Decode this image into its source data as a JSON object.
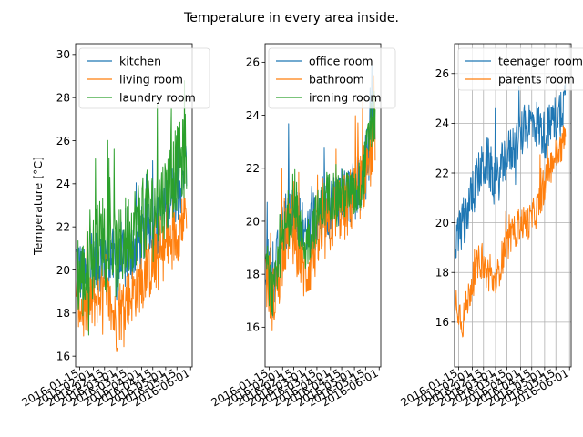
{
  "chart_data": {
    "type": "line",
    "title": "Temperature in every area inside.",
    "ylabel": "Temperature [°C]",
    "x_ticks": [
      "2016-01-15",
      "2016-02-01",
      "2016-02-15",
      "2016-03-01",
      "2016-03-15",
      "2016-04-01",
      "2016-04-15",
      "2016-05-01",
      "2016-05-15",
      "2016-06-01"
    ],
    "xlim": [
      "2016-01-10",
      "2016-06-03"
    ],
    "panels": [
      {
        "ylim": [
          15.5,
          30.5
        ],
        "y_ticks": [
          16,
          18,
          20,
          22,
          24,
          26,
          28,
          30
        ],
        "grid": false,
        "legend": "upper-left",
        "series": [
          {
            "name": "kitchen",
            "color": "#1f77b4",
            "x": [
              "2016-01-11",
              "2016-01-20",
              "2016-01-31",
              "2016-02-10",
              "2016-02-20",
              "2016-03-01",
              "2016-03-12",
              "2016-03-22",
              "2016-04-01",
              "2016-04-11",
              "2016-04-21",
              "2016-05-01",
              "2016-05-11",
              "2016-05-21",
              "2016-05-27"
            ],
            "y": [
              20.5,
              19.5,
              20.0,
              20.5,
              21.0,
              20.0,
              20.5,
              21.0,
              21.5,
              22.0,
              22.0,
              23.0,
              23.5,
              24.0,
              25.0
            ],
            "spread": 1.5
          },
          {
            "name": "living room",
            "color": "#ff7f0e",
            "x": [
              "2016-01-11",
              "2016-01-20",
              "2016-01-31",
              "2016-02-10",
              "2016-02-20",
              "2016-03-01",
              "2016-03-12",
              "2016-03-22",
              "2016-04-01",
              "2016-04-11",
              "2016-04-21",
              "2016-05-01",
              "2016-05-11",
              "2016-05-21",
              "2016-05-27"
            ],
            "y": [
              19.0,
              18.0,
              18.5,
              19.0,
              18.5,
              17.5,
              18.5,
              19.0,
              19.5,
              20.0,
              20.5,
              21.0,
              21.5,
              22.0,
              23.0
            ],
            "spread": 1.4
          },
          {
            "name": "laundry room",
            "color": "#2ca02c",
            "x": [
              "2016-01-11",
              "2016-01-20",
              "2016-01-31",
              "2016-02-10",
              "2016-02-20",
              "2016-03-01",
              "2016-03-12",
              "2016-03-22",
              "2016-04-01",
              "2016-04-11",
              "2016-04-21",
              "2016-05-01",
              "2016-05-11",
              "2016-05-21",
              "2016-05-27"
            ],
            "y": [
              20.0,
              19.5,
              20.5,
              21.5,
              22.0,
              20.5,
              21.5,
              22.0,
              22.5,
              22.5,
              23.0,
              23.5,
              24.5,
              25.0,
              25.5
            ],
            "spread": 2.0
          }
        ]
      },
      {
        "ylim": [
          14.5,
          26.7
        ],
        "y_ticks": [
          16,
          18,
          20,
          22,
          24,
          26
        ],
        "grid": false,
        "legend": "upper-left",
        "series": [
          {
            "name": "office room",
            "color": "#1f77b4",
            "x": [
              "2016-01-11",
              "2016-01-20",
              "2016-01-31",
              "2016-02-10",
              "2016-02-20",
              "2016-03-01",
              "2016-03-12",
              "2016-03-22",
              "2016-04-01",
              "2016-04-11",
              "2016-04-21",
              "2016-05-01",
              "2016-05-11",
              "2016-05-21",
              "2016-05-27"
            ],
            "y": [
              18.5,
              17.5,
              19.5,
              20.5,
              20.0,
              19.5,
              20.0,
              20.5,
              20.5,
              21.0,
              21.0,
              21.0,
              21.5,
              23.0,
              24.0
            ],
            "spread": 1.2
          },
          {
            "name": "bathroom",
            "color": "#ff7f0e",
            "x": [
              "2016-01-11",
              "2016-01-20",
              "2016-01-31",
              "2016-02-10",
              "2016-02-20",
              "2016-03-01",
              "2016-03-12",
              "2016-03-22",
              "2016-04-01",
              "2016-04-11",
              "2016-04-21",
              "2016-05-01",
              "2016-05-11",
              "2016-05-21",
              "2016-05-27"
            ],
            "y": [
              18.0,
              17.0,
              18.5,
              20.0,
              19.0,
              18.0,
              19.0,
              19.5,
              20.0,
              20.5,
              20.5,
              21.0,
              21.5,
              22.5,
              23.5
            ],
            "spread": 1.3
          },
          {
            "name": "ironing room",
            "color": "#2ca02c",
            "x": [
              "2016-01-11",
              "2016-01-20",
              "2016-01-31",
              "2016-02-10",
              "2016-02-20",
              "2016-03-01",
              "2016-03-12",
              "2016-03-22",
              "2016-04-01",
              "2016-04-11",
              "2016-04-21",
              "2016-05-01",
              "2016-05-11",
              "2016-05-21",
              "2016-05-27"
            ],
            "y": [
              18.5,
              17.0,
              19.0,
              20.5,
              20.0,
              19.0,
              20.0,
              20.5,
              21.0,
              21.0,
              21.0,
              21.0,
              21.5,
              23.5,
              24.0
            ],
            "spread": 1.0
          }
        ]
      },
      {
        "ylim": [
          14.2,
          27.2
        ],
        "y_ticks": [
          16,
          18,
          20,
          22,
          24,
          26
        ],
        "grid": true,
        "legend": "upper-left",
        "series": [
          {
            "name": "teenager room",
            "color": "#1f77b4",
            "x": [
              "2016-01-11",
              "2016-01-20",
              "2016-01-31",
              "2016-02-10",
              "2016-02-20",
              "2016-03-01",
              "2016-03-12",
              "2016-03-22",
              "2016-04-01",
              "2016-04-11",
              "2016-04-21",
              "2016-05-01",
              "2016-05-11",
              "2016-05-21",
              "2016-05-27"
            ],
            "y": [
              19.0,
              20.0,
              21.0,
              22.0,
              22.5,
              21.5,
              22.5,
              23.0,
              23.5,
              24.0,
              24.0,
              23.5,
              24.0,
              24.5,
              25.0
            ],
            "spread": 1.0
          },
          {
            "name": "parents room",
            "color": "#ff7f0e",
            "x": [
              "2016-01-11",
              "2016-01-20",
              "2016-01-31",
              "2016-02-10",
              "2016-02-20",
              "2016-03-01",
              "2016-03-12",
              "2016-03-22",
              "2016-04-01",
              "2016-04-11",
              "2016-04-21",
              "2016-05-01",
              "2016-05-11",
              "2016-05-21",
              "2016-05-27"
            ],
            "y": [
              17.0,
              16.0,
              17.5,
              18.5,
              18.0,
              17.5,
              19.0,
              19.5,
              20.0,
              20.0,
              20.5,
              21.5,
              22.5,
              23.0,
              23.5
            ],
            "spread": 0.7
          }
        ]
      }
    ]
  }
}
